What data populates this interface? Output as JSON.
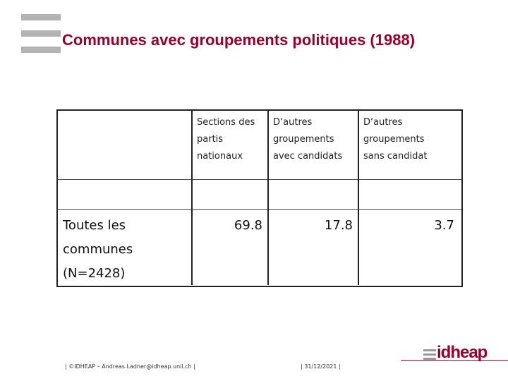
{
  "header": {
    "title": "Communes avec groupements politiques (1988)"
  },
  "table": {
    "header": [
      [
        "Sections des",
        "partis",
        "nationaux"
      ],
      [
        "D‘autres",
        "groupements",
        "avec candidats"
      ],
      [
        "D‘autres",
        "groupements",
        "sans candidat"
      ]
    ],
    "rows": [
      {
        "label": [
          "Toutes les",
          "communes",
          "(N=2428)"
        ],
        "values": [
          69.8,
          17.8,
          3.7
        ]
      }
    ]
  },
  "footer": {
    "contact": "| ©IDHEAP – Andreas.Ladner@idheap.unil.ch |",
    "date": "| 31/12/2021 |",
    "logo": "idheap"
  }
}
